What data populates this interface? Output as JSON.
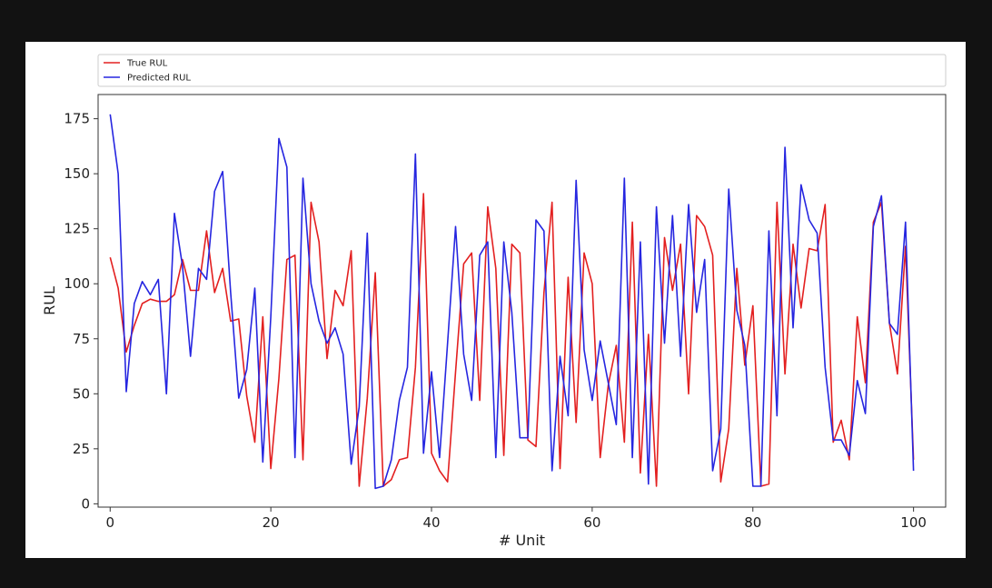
{
  "chart_data": {
    "type": "line",
    "title": "",
    "xlabel": "# Unit",
    "ylabel": "RUL",
    "xlim": [
      -1.5,
      104
    ],
    "ylim": [
      -1.5,
      186
    ],
    "xticks": [
      0,
      20,
      40,
      60,
      80,
      100
    ],
    "yticks": [
      0,
      25,
      50,
      75,
      100,
      125,
      150,
      175
    ],
    "grid": false,
    "legend_position": "top",
    "series": [
      {
        "name": "True RUL",
        "color": "#e32020",
        "values": [
          112,
          98,
          69,
          81,
          91,
          93,
          92,
          92,
          95,
          111,
          97,
          97,
          124,
          96,
          107,
          83,
          84,
          49,
          28,
          85,
          16,
          57,
          111,
          113,
          20,
          137,
          119,
          66,
          97,
          90,
          115,
          8,
          48,
          105,
          8,
          11,
          20,
          21,
          62,
          141,
          23,
          15,
          10,
          60,
          109,
          114,
          47,
          135,
          107,
          22,
          118,
          114,
          29,
          26,
          96,
          137,
          16,
          103,
          37,
          114,
          100,
          21,
          54,
          72,
          28,
          128,
          14,
          77,
          8,
          121,
          97,
          118,
          50,
          131,
          126,
          113,
          10,
          34,
          107,
          63,
          90,
          8,
          9,
          137,
          59,
          118,
          89,
          116,
          115,
          136,
          28,
          38,
          20,
          85,
          55,
          128,
          137,
          82,
          59,
          117,
          20
        ]
      },
      {
        "name": "Predicted RUL",
        "color": "#2626e0",
        "values": [
          177,
          150,
          51,
          91,
          101,
          95,
          102,
          50,
          132,
          108,
          67,
          107,
          102,
          142,
          151,
          96,
          48,
          61,
          98,
          19,
          85,
          166,
          153,
          21,
          148,
          100,
          83,
          73,
          80,
          68,
          18,
          44,
          123,
          7,
          8,
          20,
          47,
          62,
          159,
          23,
          60,
          21,
          73,
          126,
          68,
          47,
          113,
          119,
          21,
          119,
          87,
          30,
          30,
          129,
          124,
          15,
          67,
          40,
          147,
          70,
          47,
          74,
          55,
          36,
          148,
          21,
          119,
          9,
          135,
          73,
          131,
          67,
          136,
          87,
          111,
          15,
          34,
          143,
          88,
          72,
          8,
          8,
          124,
          40,
          162,
          80,
          145,
          129,
          123,
          62,
          29,
          29,
          22,
          56,
          41,
          126,
          140,
          82,
          77,
          128,
          15
        ]
      }
    ]
  }
}
